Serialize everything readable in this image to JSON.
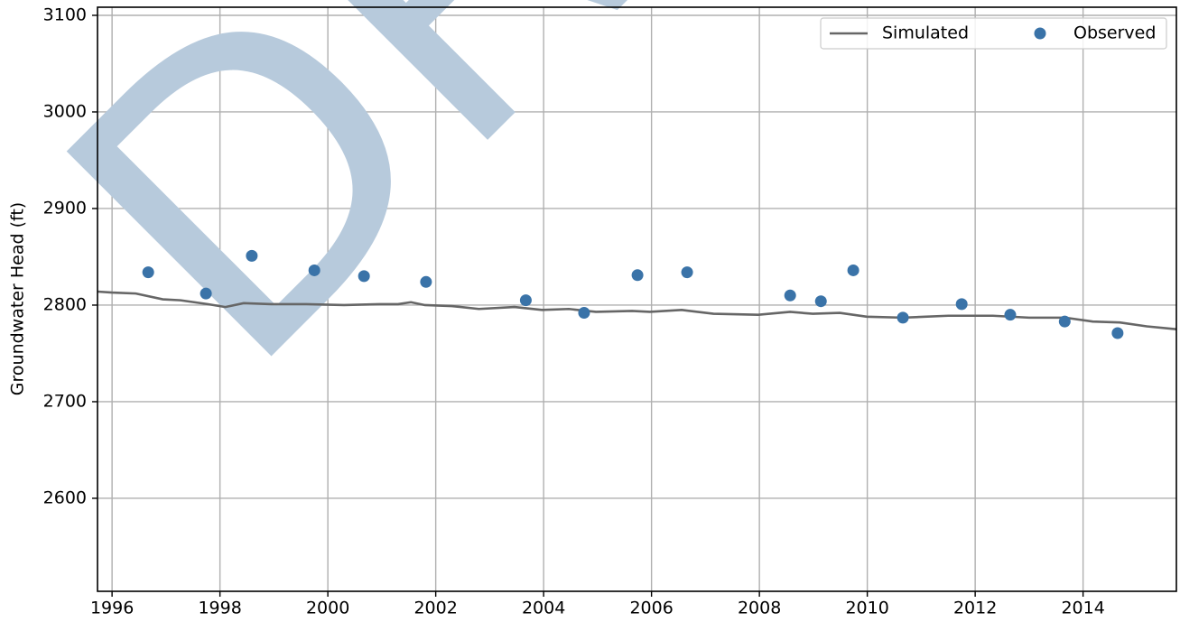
{
  "chart_data": {
    "type": "line",
    "ylabel": "Groundwater Head (ft)",
    "watermark": "DRAFT",
    "xlim": [
      1995.73,
      2015.73
    ],
    "ylim": [
      2503.7,
      3108.4
    ],
    "xticks": [
      1996,
      1998,
      2000,
      2002,
      2004,
      2006,
      2008,
      2010,
      2012,
      2014
    ],
    "yticks": [
      2600,
      2700,
      2800,
      2900,
      3000,
      3100
    ],
    "grid": true,
    "legend": "upper right",
    "series": [
      {
        "name": "Simulated",
        "type": "line",
        "color": "#666666",
        "x": [
          1995.73,
          1996,
          1996.44,
          1996.94,
          1997.27,
          1997.77,
          1998.1,
          1998.44,
          1998.95,
          1999.6,
          2000.3,
          2000.95,
          2001.3,
          2001.54,
          2001.8,
          2002.3,
          2002.8,
          2003.46,
          2003.97,
          2004.47,
          2004.97,
          2005.64,
          2005.97,
          2006.56,
          2007.15,
          2007.98,
          2008.57,
          2008.99,
          2009.49,
          2009.99,
          2010.66,
          2011.5,
          2012.33,
          2013,
          2013.67,
          2014.18,
          2014.68,
          2015.18,
          2015.73
        ],
        "values": [
          2814,
          2813,
          2812,
          2806,
          2805,
          2801,
          2798,
          2802,
          2801,
          2801,
          2800,
          2801,
          2801,
          2803,
          2800,
          2799,
          2796,
          2798,
          2795,
          2796,
          2793,
          2794,
          2793,
          2795,
          2791,
          2790,
          2793,
          2791,
          2792,
          2788,
          2787,
          2789,
          2789,
          2787,
          2787,
          2783,
          2782,
          2778,
          2775
        ]
      },
      {
        "name": "Observed",
        "type": "scatter",
        "color": "#3a73a8",
        "x": [
          1996.67,
          1997.74,
          1998.59,
          1999.75,
          2000.67,
          2001.82,
          2003.67,
          2004.75,
          2005.74,
          2006.66,
          2008.57,
          2009.14,
          2009.74,
          2010.66,
          2011.75,
          2012.65,
          2013.66,
          2014.64
        ],
        "values": [
          2834,
          2812,
          2851,
          2836,
          2830,
          2824,
          2805,
          2792,
          2831,
          2834,
          2810,
          2804,
          2836,
          2787,
          2801,
          2790,
          2783,
          2771
        ]
      }
    ]
  }
}
